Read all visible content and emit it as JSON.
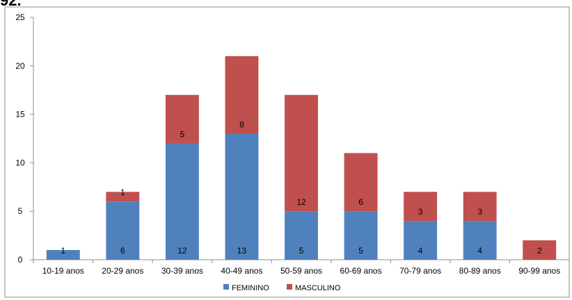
{
  "top_fragment": "92.",
  "chart_data": {
    "type": "bar",
    "stacked": true,
    "categories": [
      "10-19 anos",
      "20-29 anos",
      "30-39 anos",
      "40-49 anos",
      "50-59 anos",
      "60-69 anos",
      "70-79 anos",
      "80-89 anos",
      "90-99 anos"
    ],
    "series": [
      {
        "name": "FEMININO",
        "color": "#4F81BD",
        "values": [
          1,
          6,
          12,
          13,
          5,
          5,
          4,
          4,
          0
        ]
      },
      {
        "name": "MASCULINO",
        "color": "#C0504D",
        "values": [
          0,
          1,
          5,
          8,
          12,
          6,
          3,
          3,
          2
        ]
      }
    ],
    "ylim": [
      0,
      25
    ],
    "yticks": [
      0,
      5,
      10,
      15,
      20,
      25
    ],
    "grid": false,
    "legend": "bottom"
  }
}
